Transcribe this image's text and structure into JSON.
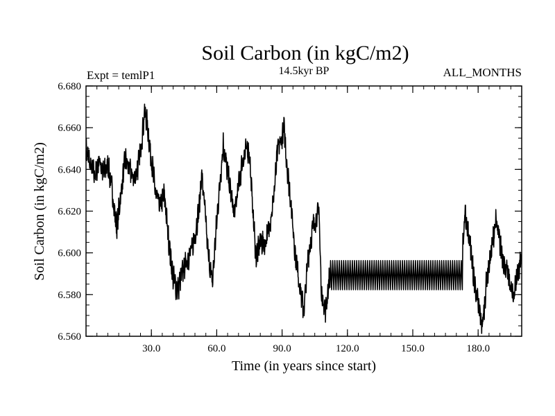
{
  "chart_data": {
    "type": "line",
    "title": "Soil Carbon (in kgC/m2)",
    "subtitle": "14.5kyr BP",
    "left_label": "Expt = temlP1",
    "right_label": "ALL_MONTHS",
    "xlabel": "Time (in years since start)",
    "ylabel": "Soil Carbon (in kgC/m2)",
    "xlim": [
      0,
      200
    ],
    "ylim": [
      6.56,
      6.68
    ],
    "xticks_major": [
      30,
      60,
      90,
      120,
      150,
      180
    ],
    "xtick_labels": [
      "30.0",
      "60.0",
      "90.0",
      "120.0",
      "150.0",
      "180.0"
    ],
    "yticks_major": [
      6.56,
      6.58,
      6.6,
      6.62,
      6.64,
      6.66,
      6.68
    ],
    "ytick_labels": [
      "6.560",
      "6.580",
      "6.600",
      "6.620",
      "6.640",
      "6.660",
      "6.680"
    ],
    "grid": false,
    "line_color": "#000000",
    "series": [
      {
        "x": [
          0,
          2,
          4,
          6,
          8,
          10,
          12,
          14,
          16,
          18,
          20,
          22,
          24,
          26,
          27,
          28,
          30,
          32,
          34,
          36,
          38,
          40,
          42,
          44,
          46,
          48,
          50,
          52,
          53,
          54,
          56,
          58,
          60,
          62,
          63,
          64,
          66,
          68,
          70,
          72,
          74,
          75,
          76,
          78,
          80,
          82,
          84,
          86,
          88,
          90,
          91,
          92,
          94,
          96,
          98,
          100,
          102,
          104,
          106,
          107,
          108,
          110,
          112,
          172,
          174,
          176,
          178,
          180,
          182,
          184,
          186,
          188,
          190,
          192,
          194,
          196,
          198,
          200
        ],
        "y": [
          6.649,
          6.642,
          6.637,
          6.645,
          6.638,
          6.642,
          6.63,
          6.612,
          6.628,
          6.645,
          6.64,
          6.635,
          6.642,
          6.658,
          6.668,
          6.662,
          6.645,
          6.628,
          6.622,
          6.628,
          6.605,
          6.588,
          6.582,
          6.59,
          6.596,
          6.6,
          6.608,
          6.622,
          6.638,
          6.628,
          6.6,
          6.585,
          6.615,
          6.64,
          6.652,
          6.645,
          6.632,
          6.618,
          6.632,
          6.645,
          6.65,
          6.648,
          6.63,
          6.598,
          6.606,
          6.604,
          6.612,
          6.625,
          6.65,
          6.655,
          6.66,
          6.645,
          6.625,
          6.6,
          6.585,
          6.572,
          6.598,
          6.612,
          6.618,
          6.62,
          6.58,
          6.573,
          6.59,
          6.59,
          6.618,
          6.608,
          6.588,
          6.575,
          6.565,
          6.588,
          6.6,
          6.615,
          6.605,
          6.595,
          6.588,
          6.578,
          6.59,
          6.598
        ]
      }
    ],
    "oscillation_band": {
      "x_start": 112,
      "x_end": 173,
      "y_min": 6.5823,
      "y_max": 6.5963,
      "cycles": 61
    }
  }
}
